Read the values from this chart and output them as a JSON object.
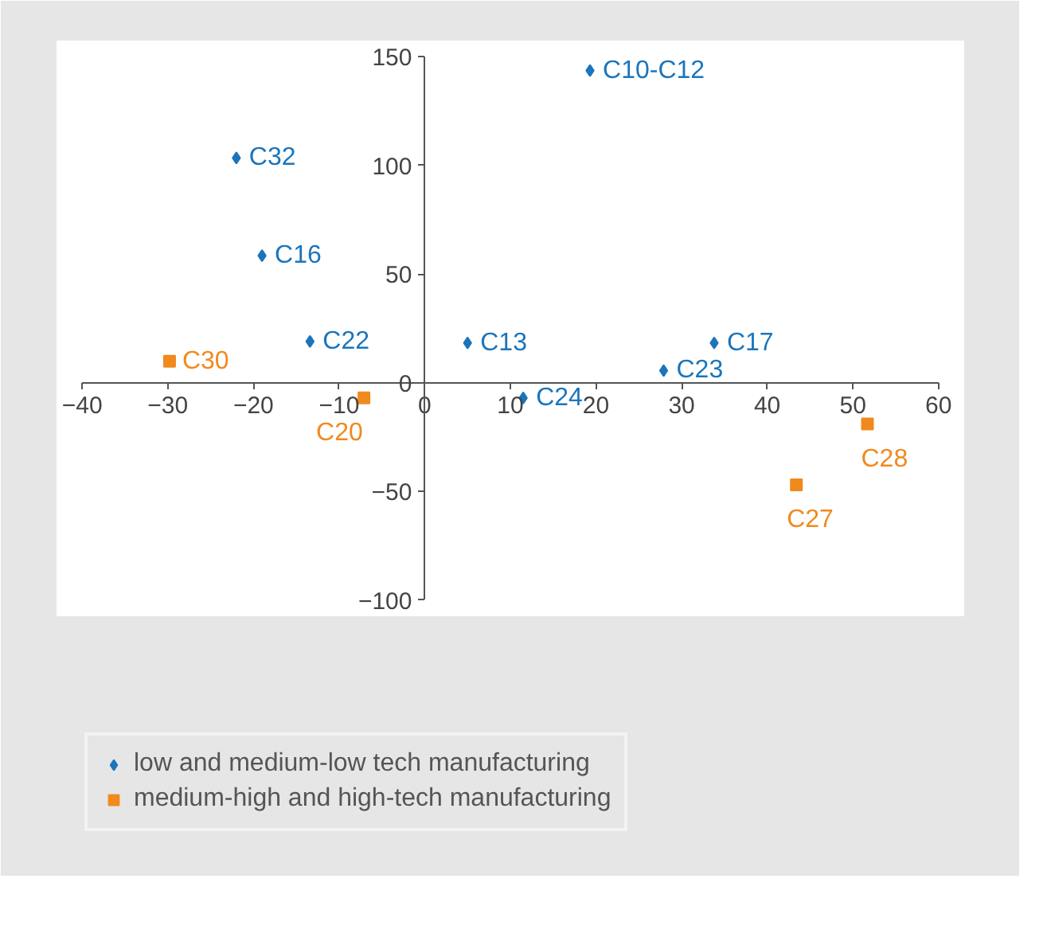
{
  "chart_data": {
    "type": "scatter",
    "xlim": [
      -40,
      60
    ],
    "ylim": [
      -100,
      150
    ],
    "xticks": [
      -40,
      -30,
      -20,
      -10,
      0,
      10,
      20,
      30,
      40,
      50,
      60
    ],
    "yticks": [
      -100,
      -50,
      0,
      50,
      100,
      150
    ],
    "legend": "bottom",
    "series": [
      {
        "name": "low and medium-low tech manufacturing",
        "color": "#1b75bb",
        "marker": "diamond",
        "x": [
          19.3,
          -22,
          -19,
          -13.4,
          5,
          11.5,
          27.9,
          33.8
        ],
        "values": [
          143.7,
          103.5,
          58.5,
          19,
          18.3,
          -7,
          5.6,
          18.3
        ],
        "value_labels": [
          "C10-C12",
          "C32",
          "C16",
          "C22",
          "C13",
          "C24",
          "C23",
          "C17"
        ]
      },
      {
        "name": "medium-high and high-tech manufacturing",
        "color": "#f08a1e",
        "marker": "square",
        "x": [
          -29.8,
          -7.1,
          51.7,
          43.4
        ],
        "values": [
          9.9,
          -7,
          -19,
          -47
        ],
        "value_labels": [
          "C30",
          "C20",
          "C28",
          "C27"
        ]
      }
    ]
  }
}
